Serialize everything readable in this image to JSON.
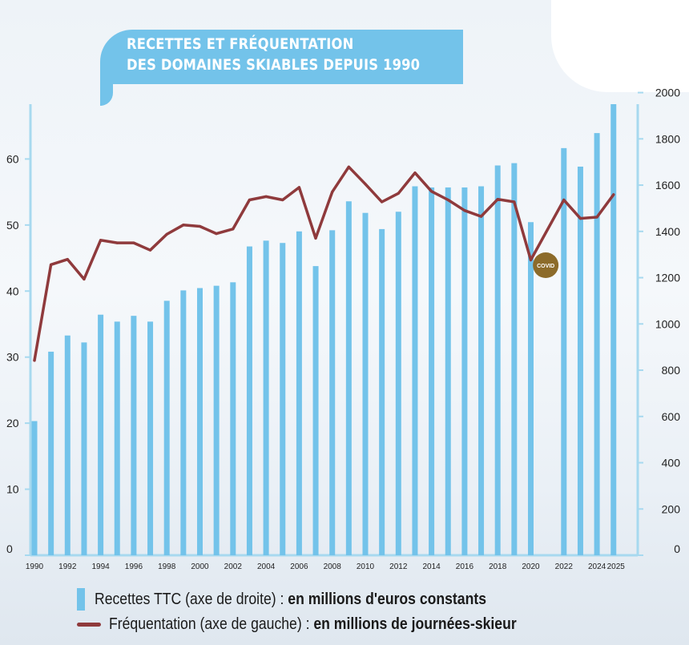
{
  "title_lines": [
    "RECETTES ET FRÉQUENTATION",
    "DES DOMAINES SKIABLES DEPUIS 1990"
  ],
  "colors": {
    "bars": "#73c3ea",
    "line": "#8f3a3c",
    "axis": "#a7d9ef",
    "covid_badge": "#8c6b2a"
  },
  "legend": {
    "bar_label": "Recettes TTC (axe de droite) : ",
    "bar_unit": "en millions d'euros constants",
    "line_label": "Fréquentation (axe de gauche) : ",
    "line_unit": "en millions de journées-skieur"
  },
  "chart_data": {
    "type": "bar+line",
    "years": [
      1990,
      1991,
      1992,
      1993,
      1994,
      1995,
      1996,
      1997,
      1998,
      1999,
      2000,
      2001,
      2002,
      2003,
      2004,
      2005,
      2006,
      2007,
      2008,
      2009,
      2010,
      2011,
      2012,
      2013,
      2014,
      2015,
      2016,
      2017,
      2018,
      2019,
      2020,
      2021,
      2022,
      2023,
      2024,
      2025
    ],
    "x_tick_labels": [
      "1990",
      "1992",
      "1994",
      "1996",
      "1998",
      "2000",
      "2002",
      "2004",
      "2006",
      "2008",
      "2010",
      "2012",
      "2014",
      "2016",
      "2018",
      "2020",
      "2022",
      "2024",
      "2025"
    ],
    "left_axis": {
      "ticks": [
        0,
        10,
        20,
        30,
        40,
        50,
        60
      ],
      "range": [
        0,
        68.3
      ]
    },
    "right_axis": {
      "ticks": [
        0,
        200,
        400,
        600,
        800,
        1000,
        1200,
        1400,
        1600,
        1800,
        2000
      ],
      "range": [
        0,
        1950
      ]
    },
    "series": [
      {
        "type": "bar",
        "axis": "right",
        "values": [
          580,
          880,
          950,
          920,
          1040,
          1010,
          1035,
          1010,
          1100,
          1145,
          1155,
          1165,
          1180,
          1335,
          1360,
          1350,
          1400,
          1250,
          1405,
          1530,
          1480,
          1410,
          1485,
          1595,
          1590,
          1590,
          1590,
          1595,
          1685,
          1695,
          1440,
          0,
          1760,
          1680,
          1825,
          2015
        ]
      },
      {
        "type": "line",
        "axis": "left",
        "values": [
          29.5,
          44,
          44.8,
          41.8,
          47.7,
          47.3,
          47.3,
          46.2,
          48.6,
          50,
          49.8,
          48.7,
          49.4,
          53.8,
          54.3,
          53.8,
          55.7,
          48,
          55,
          58.8,
          56.2,
          53.5,
          54.8,
          57.9,
          55.1,
          53.8,
          52.2,
          51.3,
          53.9,
          53.5,
          44.7,
          null,
          53.8,
          51,
          51.2,
          54.6
        ]
      }
    ],
    "annotations": [
      {
        "year": 2021,
        "text": "COVID"
      }
    ]
  }
}
